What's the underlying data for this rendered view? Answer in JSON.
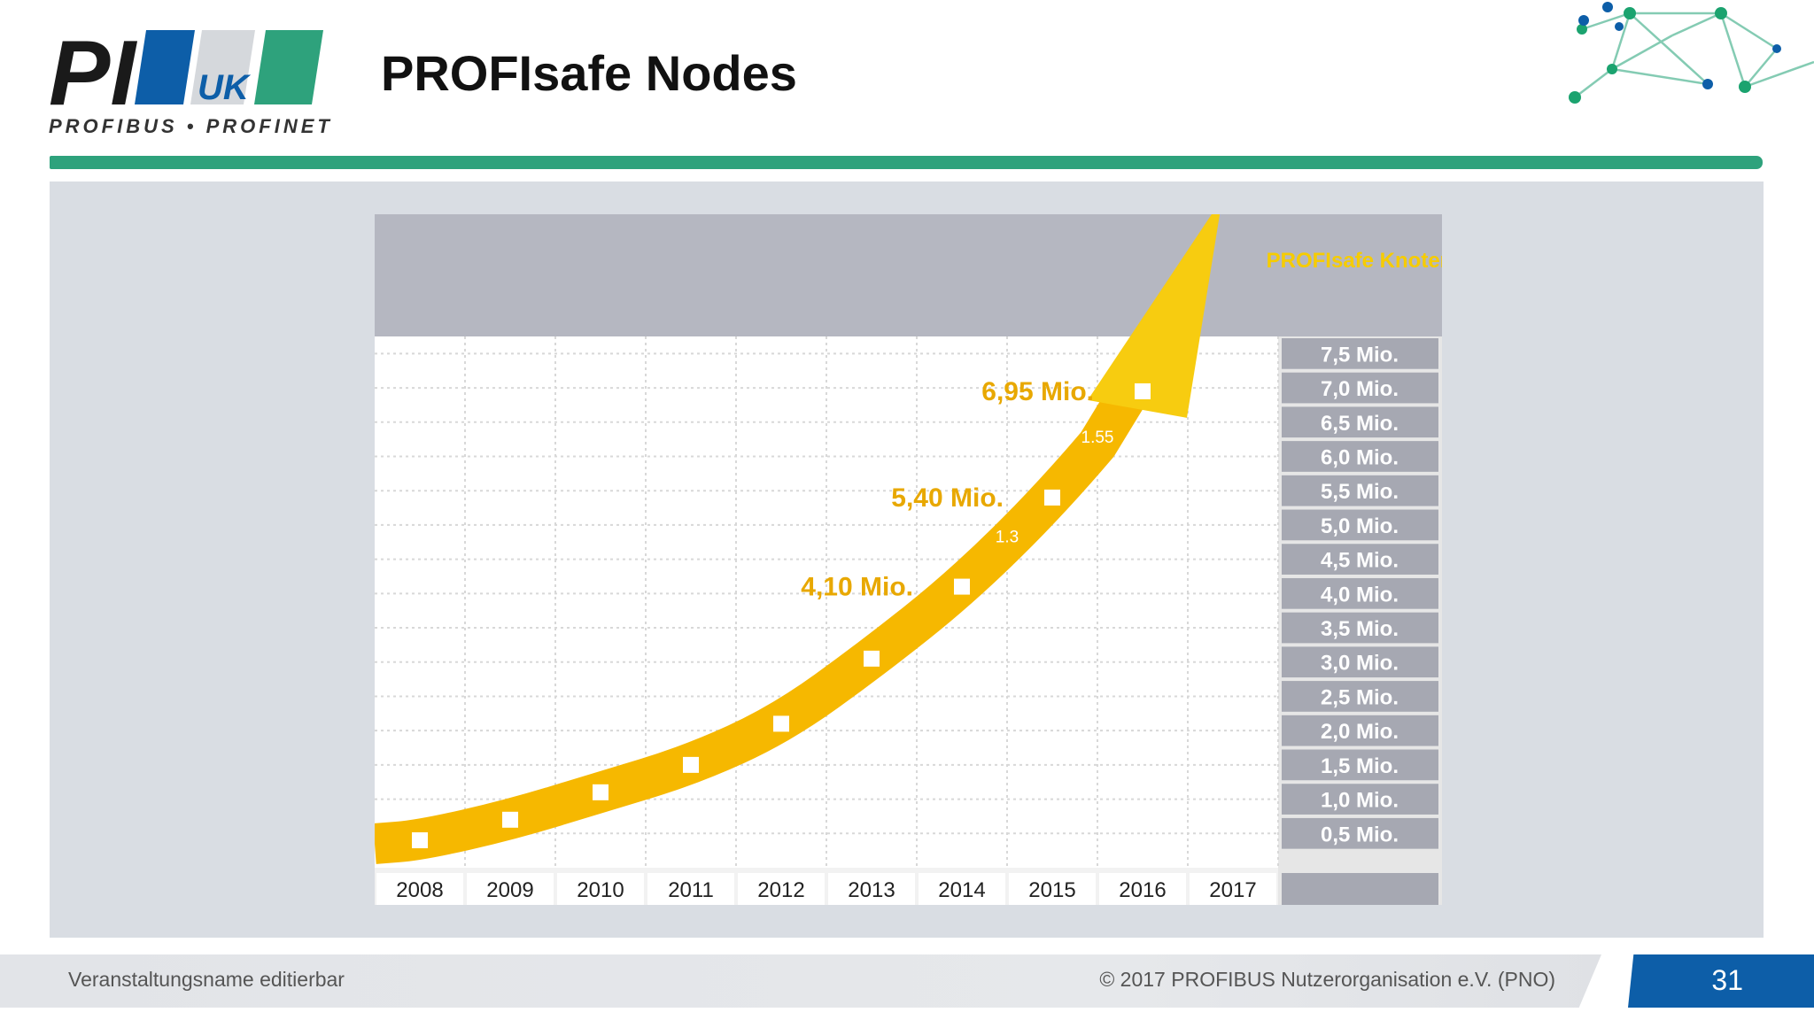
{
  "header": {
    "title": "PROFIsafe Nodes",
    "logo": {
      "mark": "PI",
      "badge": "UK",
      "tagline": "PROFIBUS • PROFINET"
    }
  },
  "colors": {
    "accent_green": "#2ea27c",
    "brand_blue": "#0d5ea8",
    "arrow_yellow": "#f6b800",
    "label_gold": "#e8a800"
  },
  "chart_data": {
    "type": "line",
    "title": "PROFIsafe Knoten",
    "categories": [
      "2008",
      "2009",
      "2010",
      "2011",
      "2012",
      "2013",
      "2014",
      "2015",
      "2016",
      "2017"
    ],
    "x": [
      2008.5,
      2009.5,
      2010.5,
      2011.5,
      2012.5,
      2013.5,
      2014.5,
      2015.5,
      2016.5
    ],
    "values": [
      0.4,
      0.7,
      1.1,
      1.5,
      2.1,
      3.05,
      4.1,
      5.4,
      6.95
    ],
    "ylabels": [
      "7,5 Mio.",
      "7,0 Mio.",
      "6,5 Mio.",
      "6,0 Mio.",
      "5,5 Mio.",
      "5,0 Mio.",
      "4,5 Mio.",
      "4,0 Mio.",
      "3,5 Mio.",
      "3,0 Mio.",
      "2,5 Mio.",
      "2,0 Mio.",
      "1,5 Mio.",
      "1,0 Mio.",
      "0,5 Mio."
    ],
    "ylim": [
      0,
      7.75
    ],
    "xlim": [
      2008,
      2018
    ],
    "data_labels": [
      {
        "text": "4,10 Mio.",
        "point": 6
      },
      {
        "text": "5,40 Mio.",
        "point": 7
      },
      {
        "text": "6,95 Mio.",
        "point": 8
      }
    ],
    "increments": [
      {
        "text": "1.3",
        "x": 2015.0,
        "y": 4.75
      },
      {
        "text": "1.55",
        "x": 2016.0,
        "y": 6.2
      }
    ],
    "grid": true
  },
  "footer": {
    "event": "Veranstaltungsname editierbar",
    "copyright": "© 2017  PROFIBUS Nutzerorganisation e.V. (PNO)",
    "page": "31"
  }
}
